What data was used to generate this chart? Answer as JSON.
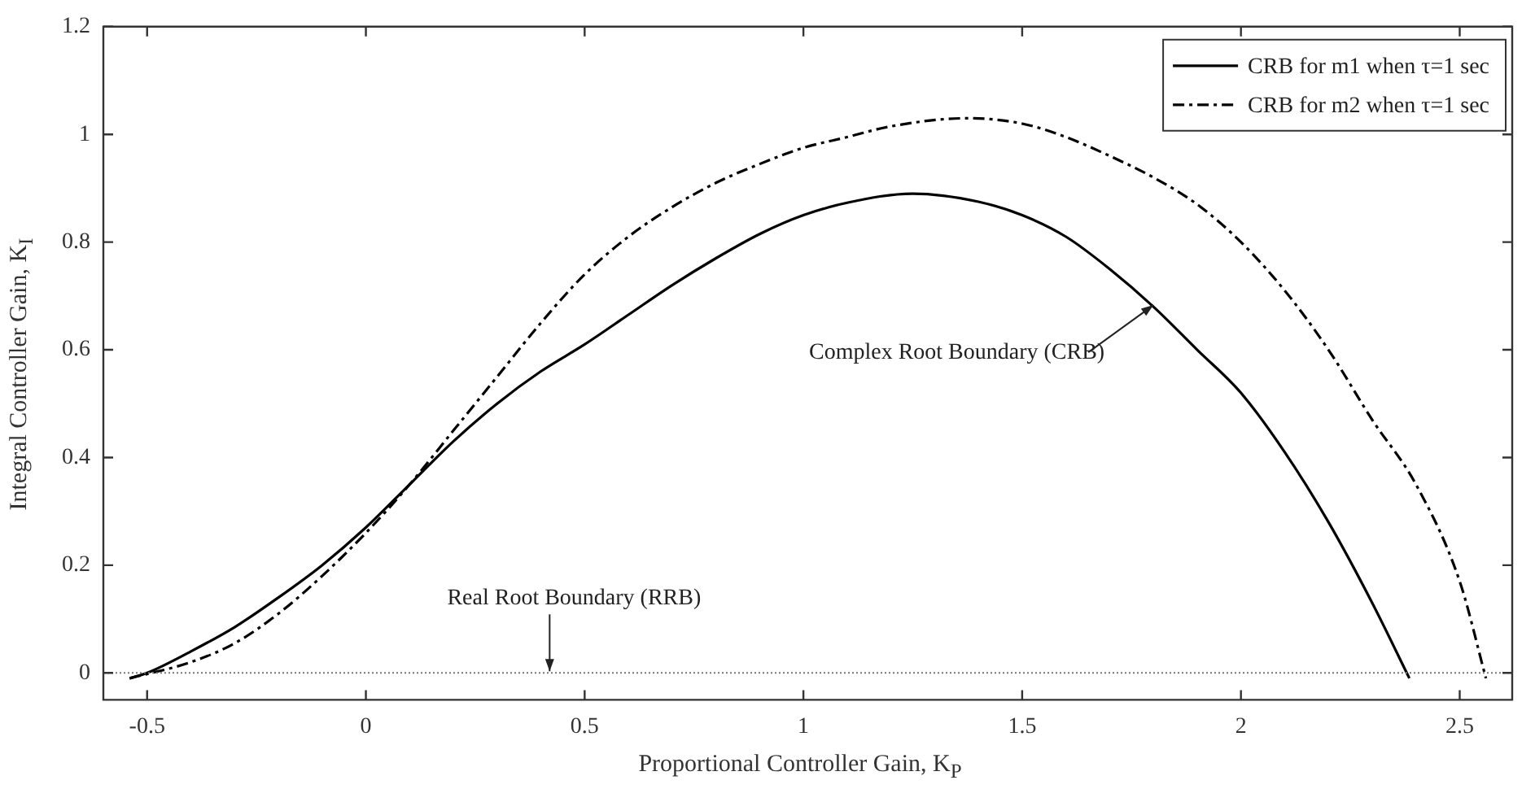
{
  "chart_data": {
    "type": "line",
    "xlabel": "Proportional Controller Gain, K$_{P}$",
    "ylabel": "Integral Controller Gain, K$_{I}$",
    "xlim": [
      -0.6,
      2.62
    ],
    "ylim": [
      -0.05,
      1.2
    ],
    "xticks": [
      -0.5,
      0,
      0.5,
      1,
      1.5,
      2,
      2.5
    ],
    "yticks": [
      0,
      0.2,
      0.4,
      0.6,
      0.8,
      1,
      1.2
    ],
    "grid": false,
    "legend": "top right",
    "marker": "none",
    "series": [
      {
        "name": "CRB for m1 when τ=1 sec",
        "color": "#000000",
        "line_style": "solid",
        "x": [
          -0.54,
          -0.5,
          -0.4,
          -0.3,
          -0.2,
          -0.1,
          0,
          0.1,
          0.2,
          0.3,
          0.4,
          0.5,
          0.6,
          0.7,
          0.8,
          0.9,
          1.0,
          1.1,
          1.25,
          1.4,
          1.5,
          1.6,
          1.7,
          1.8,
          1.9,
          2.0,
          2.1,
          2.2,
          2.3,
          2.385
        ],
        "values": [
          -0.01,
          0,
          0.04,
          0.085,
          0.14,
          0.2,
          0.27,
          0.35,
          0.43,
          0.5,
          0.56,
          0.61,
          0.665,
          0.72,
          0.77,
          0.815,
          0.85,
          0.873,
          0.89,
          0.875,
          0.85,
          0.81,
          0.75,
          0.68,
          0.6,
          0.52,
          0.41,
          0.28,
          0.13,
          -0.01
        ]
      },
      {
        "name": "CRB for m2 when τ=1 sec",
        "color": "#000000",
        "line_style": "dashed",
        "x": [
          -0.54,
          -0.4,
          -0.3,
          -0.2,
          -0.1,
          0,
          0.1,
          0.2,
          0.3,
          0.4,
          0.5,
          0.6,
          0.7,
          0.8,
          0.9,
          1.0,
          1.1,
          1.2,
          1.375,
          1.5,
          1.6,
          1.7,
          1.8,
          1.9,
          2.0,
          2.1,
          2.2,
          2.3,
          2.4,
          2.5,
          2.56
        ],
        "values": [
          -0.01,
          0.02,
          0.055,
          0.11,
          0.18,
          0.26,
          0.35,
          0.45,
          0.55,
          0.65,
          0.74,
          0.81,
          0.865,
          0.91,
          0.945,
          0.975,
          0.995,
          1.015,
          1.03,
          1.02,
          0.995,
          0.96,
          0.92,
          0.87,
          0.8,
          0.71,
          0.6,
          0.47,
          0.35,
          0.17,
          -0.01
        ]
      }
    ],
    "ref_lines": [
      {
        "axis": "y",
        "value": 0,
        "color": "#777777",
        "line_style": "dotted"
      }
    ],
    "annotations": [
      {
        "text": "Real Root Boundary (RRB)",
        "x": 0.42,
        "y": 0
      },
      {
        "text": "Complex Root Boundary (CRB)",
        "x": 1.8,
        "y": 0.68
      }
    ]
  }
}
